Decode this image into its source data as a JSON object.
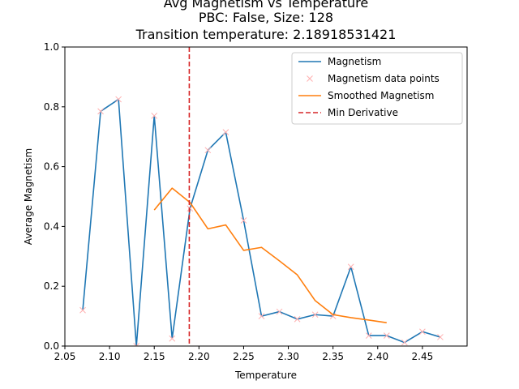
{
  "chart_data": {
    "type": "line",
    "title_lines": [
      "Avg Magnetism vs Temperature",
      "PBC: False, Size: 128",
      "Transition temperature: 2.18918531421"
    ],
    "xlabel": "Temperature",
    "ylabel": "Average Magnetism",
    "xlim": [
      2.05,
      2.5
    ],
    "ylim": [
      0.0,
      1.0
    ],
    "xticks": [
      2.05,
      2.1,
      2.15,
      2.2,
      2.25,
      2.3,
      2.35,
      2.4,
      2.45
    ],
    "xtick_labels": [
      "2.05",
      "2.10",
      "2.15",
      "2.20",
      "2.25",
      "2.30",
      "2.35",
      "2.40",
      "2.45"
    ],
    "yticks": [
      0.0,
      0.2,
      0.4,
      0.6,
      0.8,
      1.0
    ],
    "ytick_labels": [
      "0.0",
      "0.2",
      "0.4",
      "0.6",
      "0.8",
      "1.0"
    ],
    "grid": false,
    "legend_position": "top-right",
    "series": [
      {
        "name": "Magnetism",
        "kind": "line",
        "color": "#1f77b4",
        "x": [
          2.07,
          2.09,
          2.11,
          2.13,
          2.15,
          2.17,
          2.19,
          2.21,
          2.23,
          2.25,
          2.27,
          2.29,
          2.31,
          2.33,
          2.35,
          2.37,
          2.39,
          2.41,
          2.43,
          2.45,
          2.47
        ],
        "y": [
          0.12,
          0.785,
          0.825,
          0.0,
          0.77,
          0.025,
          0.46,
          0.655,
          0.715,
          0.42,
          0.1,
          0.115,
          0.09,
          0.105,
          0.1,
          0.265,
          0.035,
          0.035,
          0.012,
          0.048,
          0.03
        ]
      },
      {
        "name": "Magnetism data points",
        "kind": "scatter",
        "marker": "x",
        "color": "#ffb0b0",
        "x": [
          2.07,
          2.09,
          2.11,
          2.13,
          2.15,
          2.17,
          2.19,
          2.21,
          2.23,
          2.25,
          2.27,
          2.29,
          2.31,
          2.33,
          2.35,
          2.37,
          2.39,
          2.41,
          2.43,
          2.45,
          2.47
        ],
        "y": [
          0.12,
          0.785,
          0.825,
          0.0,
          0.77,
          0.025,
          0.46,
          0.655,
          0.715,
          0.42,
          0.1,
          0.115,
          0.09,
          0.105,
          0.1,
          0.265,
          0.035,
          0.035,
          0.012,
          0.048,
          0.03
        ]
      },
      {
        "name": "Smoothed Magnetism",
        "kind": "line",
        "color": "#ff7f0e",
        "x": [
          2.15,
          2.17,
          2.19,
          2.21,
          2.23,
          2.25,
          2.27,
          2.29,
          2.31,
          2.33,
          2.35,
          2.37,
          2.39,
          2.41
        ],
        "y": [
          0.455,
          0.528,
          0.48,
          0.392,
          0.405,
          0.32,
          0.33,
          0.285,
          0.238,
          0.152,
          0.105,
          0.095,
          0.087,
          0.078
        ]
      },
      {
        "name": "Min Derivative",
        "kind": "vline",
        "color": "#d62728",
        "dashed": true,
        "x_value": 2.18918531421
      }
    ]
  }
}
